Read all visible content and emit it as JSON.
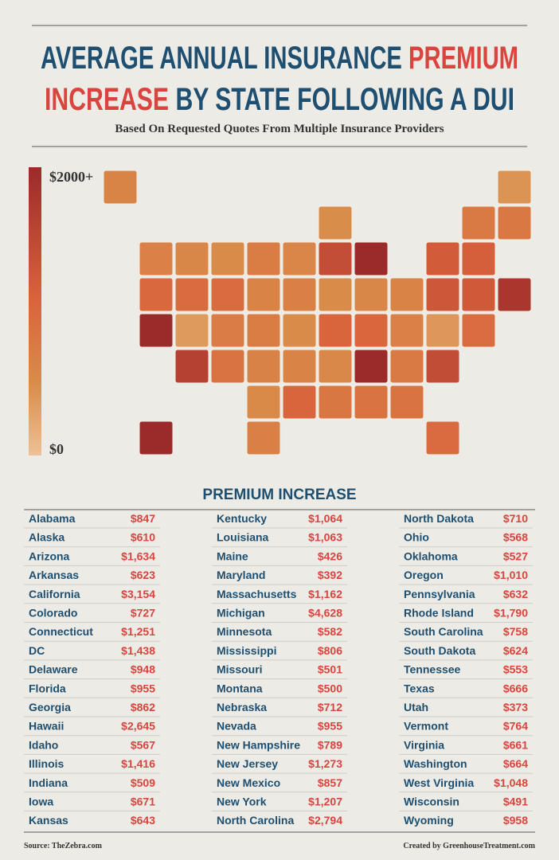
{
  "header": {
    "title_line1_main": "AVERAGE ANNUAL INSURANCE",
    "title_line1_highlight": "PREMIUM",
    "title_line2_highlight": "INCREASE",
    "title_line2_main": "BY STATE FOLLOWING A DUI",
    "subtitle": "Based On Requested Quotes From Multiple Insurance Providers"
  },
  "legend": {
    "max": {
      "value": 2000,
      "label": "$2000+"
    },
    "min": {
      "value": 0,
      "label": "$0"
    }
  },
  "table": {
    "title": "PREMIUM INCREASE",
    "states": [
      "Alabama",
      "Alaska",
      "Arizona",
      "Arkansas",
      "California",
      "Colorado",
      "Connecticut",
      "DC",
      "Delaware",
      "Florida",
      "Georgia",
      "Hawaii",
      "Idaho",
      "Illinois",
      "Indiana",
      "Iowa",
      "Kansas",
      "Kentucky",
      "Louisiana",
      "Maine",
      "Maryland",
      "Massachusetts",
      "Michigan",
      "Minnesota",
      "Mississippi",
      "Missouri",
      "Montana",
      "Nebraska",
      "Nevada",
      "New Hampshire",
      "New Jersey",
      "New Mexico",
      "New York",
      "North Carolina",
      "North Dakota",
      "Ohio",
      "Oklahoma",
      "Oregon",
      "Pennsylvania",
      "Rhode Island",
      "South Carolina",
      "South Dakota",
      "Tennessee",
      "Texas",
      "Utah",
      "Vermont",
      "Virginia",
      "Washington",
      "West Virginia",
      "Wisconsin",
      "Wyoming"
    ],
    "values": [
      847,
      610,
      1634,
      623,
      3154,
      727,
      1251,
      1438,
      948,
      955,
      862,
      2645,
      567,
      1416,
      509,
      671,
      643,
      1064,
      1063,
      426,
      392,
      1162,
      4628,
      582,
      806,
      501,
      500,
      712,
      955,
      789,
      1273,
      857,
      1207,
      2794,
      710,
      568,
      527,
      1010,
      632,
      1790,
      758,
      624,
      553,
      666,
      373,
      764,
      661,
      664,
      1048,
      491,
      958
    ],
    "value_labels": [
      "$847",
      "$610",
      "$1,634",
      "$623",
      "$3,154",
      "$727",
      "$1,251",
      "$1,438",
      "$948",
      "$955",
      "$862",
      "$2,645",
      "$567",
      "$1,416",
      "$509",
      "$671",
      "$643",
      "$1,064",
      "$1,063",
      "$426",
      "$392",
      "$1,162",
      "$4,628",
      "$582",
      "$806",
      "$501",
      "$500",
      "$712",
      "$955",
      "$789",
      "$1,273",
      "$857",
      "$1,207",
      "$2,794",
      "$710",
      "$568",
      "$527",
      "$1,010",
      "$632",
      "$1,790",
      "$758",
      "$624",
      "$553",
      "$666",
      "$373",
      "$764",
      "$661",
      "$664",
      "$1,048",
      "$491",
      "$958"
    ]
  },
  "footer": {
    "source": "Source: TheZebra.com",
    "credit": "Created by GreenhouseTreatment.com"
  }
}
